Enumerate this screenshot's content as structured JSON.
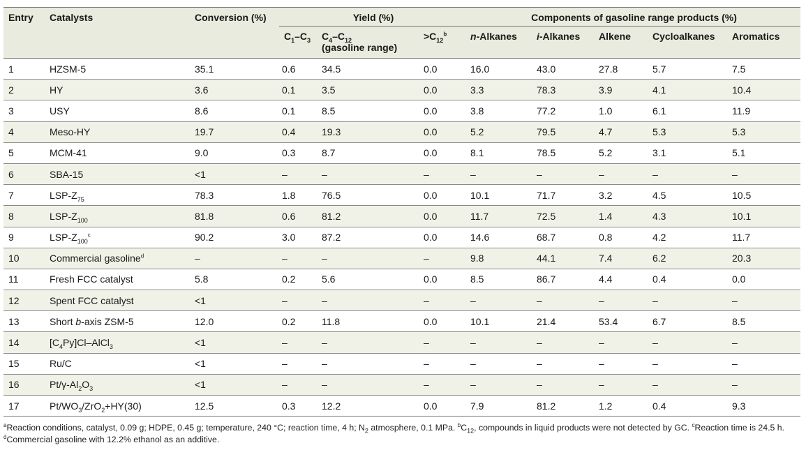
{
  "header": {
    "entry": "Entry",
    "catalysts": "Catalysts",
    "conversion": "Conversion (%)",
    "yield": "Yield (%)",
    "components": "Components of gasoline range products (%)",
    "c1c3": "C1–C3",
    "c4c12": "C4–C12",
    "gasoline_range": "(gasoline range)",
    "gtc12": ">C12",
    "gtc12_note": "b",
    "n_alkanes": "n-Alkanes",
    "i_alkanes": "i-Alkanes",
    "alkene": "Alkene",
    "cycloalkanes": "Cycloalkanes",
    "aromatics": "Aromatics"
  },
  "rows": [
    [
      "1",
      "HZSM-5",
      "35.1",
      "0.6",
      "34.5",
      "0.0",
      "16.0",
      "43.0",
      "27.8",
      "5.7",
      "7.5"
    ],
    [
      "2",
      "HY",
      "3.6",
      "0.1",
      "3.5",
      "0.0",
      "3.3",
      "78.3",
      "3.9",
      "4.1",
      "10.4"
    ],
    [
      "3",
      "USY",
      "8.6",
      "0.1",
      "8.5",
      "0.0",
      "3.8",
      "77.2",
      "1.0",
      "6.1",
      "11.9"
    ],
    [
      "4",
      "Meso-HY",
      "19.7",
      "0.4",
      "19.3",
      "0.0",
      "5.2",
      "79.5",
      "4.7",
      "5.3",
      "5.3"
    ],
    [
      "5",
      "MCM-41",
      "9.0",
      "0.3",
      "8.7",
      "0.0",
      "8.1",
      "78.5",
      "5.2",
      "3.1",
      "5.1"
    ],
    [
      "6",
      "SBA-15",
      "<1",
      "–",
      "–",
      "–",
      "–",
      "–",
      "–",
      "–",
      "–"
    ],
    [
      "7",
      "LSP-Z75",
      "78.3",
      "1.8",
      "76.5",
      "0.0",
      "10.1",
      "71.7",
      "3.2",
      "4.5",
      "10.5"
    ],
    [
      "8",
      "LSP-Z100",
      "81.8",
      "0.6",
      "81.2",
      "0.0",
      "11.7",
      "72.5",
      "1.4",
      "4.3",
      "10.1"
    ],
    [
      "9",
      "LSP-Z100",
      "90.2",
      "3.0",
      "87.2",
      "0.0",
      "14.6",
      "68.7",
      "0.8",
      "4.2",
      "11.7"
    ],
    [
      "10",
      "Commercial gasoline",
      "–",
      "–",
      "–",
      "–",
      "9.8",
      "44.1",
      "7.4",
      "6.2",
      "20.3"
    ],
    [
      "11",
      "Fresh FCC catalyst",
      "5.8",
      "0.2",
      "5.6",
      "0.0",
      "8.5",
      "86.7",
      "4.4",
      "0.4",
      "0.0"
    ],
    [
      "12",
      "Spent FCC catalyst",
      "<1",
      "–",
      "–",
      "–",
      "–",
      "–",
      "–",
      "–",
      "–"
    ],
    [
      "13",
      "Short b-axis ZSM-5",
      "12.0",
      "0.2",
      "11.8",
      "0.0",
      "10.1",
      "21.4",
      "53.4",
      "6.7",
      "8.5"
    ],
    [
      "14",
      "[C4Py]Cl–AlCl3",
      "<1",
      "–",
      "–",
      "–",
      "–",
      "–",
      "–",
      "–",
      "–"
    ],
    [
      "15",
      "Ru/C",
      "<1",
      "–",
      "–",
      "–",
      "–",
      "–",
      "–",
      "–",
      "–"
    ],
    [
      "16",
      "Pt/γ-Al2O3",
      "<1",
      "–",
      "–",
      "–",
      "–",
      "–",
      "–",
      "–",
      "–"
    ],
    [
      "17",
      "Pt/WO3/ZrO2+HY(30)",
      "12.5",
      "0.3",
      "12.2",
      "0.0",
      "7.9",
      "81.2",
      "1.2",
      "0.4",
      "9.3"
    ]
  ],
  "row_notes": {
    "9": "c",
    "10": "d"
  },
  "footnote": {
    "a_mark": "a",
    "a": "Reaction conditions, catalyst, 0.09 g; HDPE, 0.45 g; temperature, 240 °C; reaction time, 4 h; N2 atmosphere, 0.1 MPa.",
    "b_mark": "b",
    "b": "C12, compounds in liquid products were not detected by GC.",
    "c_mark": "c",
    "c": "Reaction time is 24.5 h.",
    "d_mark": "d",
    "d": "Commercial gasoline with 12.2% ethanol as an additive."
  }
}
